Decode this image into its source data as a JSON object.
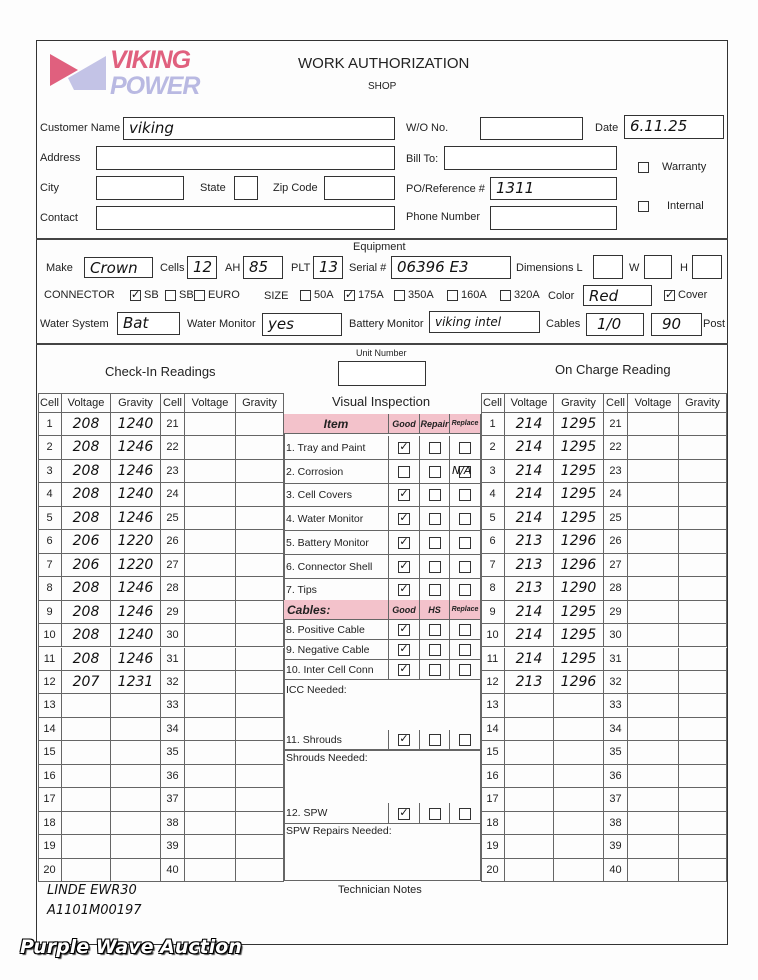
{
  "header": {
    "logo_line1": "VIKING",
    "logo_line2": "POWER",
    "title": "WORK AUTHORIZATION",
    "subtitle": "SHOP",
    "brand_pink": "#e0607e",
    "brand_lavender": "#b9b9e2"
  },
  "customer": {
    "customer_name_label": "Customer Name",
    "customer_name": "viking",
    "wo_label": "W/O No.",
    "wo": "",
    "date_label": "Date",
    "date": "6.11.25",
    "address_label": "Address",
    "bill_to_label": "Bill To:",
    "warranty_label": "Warranty",
    "internal_label": "Internal",
    "city_label": "City",
    "state_label": "State",
    "zip_label": "Zip Code",
    "po_label": "PO/Reference #",
    "po": "1311",
    "contact_label": "Contact",
    "phone_label": "Phone Number"
  },
  "equipment": {
    "title": "Equipment",
    "make_label": "Make",
    "make": "Crown",
    "cells_label": "Cells",
    "cells": "12",
    "ah_label": "AH",
    "ah": "85",
    "plt_label": "PLT",
    "plt": "13",
    "serial_label": "Serial #",
    "serial": "06396 E3",
    "dimensions_label": "Dimensions L",
    "w_label": "W",
    "h_label": "H",
    "connector_label": "CONNECTOR",
    "connector_options": [
      {
        "label": "SB",
        "checked": true
      },
      {
        "label": "SBX",
        "checked": false
      },
      {
        "label": "EURO",
        "checked": false
      }
    ],
    "size_label": "SIZE",
    "size_options": [
      {
        "label": "50A",
        "checked": false
      },
      {
        "label": "175A",
        "checked": true
      },
      {
        "label": "350A",
        "checked": false
      },
      {
        "label": "160A",
        "checked": false
      },
      {
        "label": "320A",
        "checked": false
      }
    ],
    "color_label": "Color",
    "color": "Red",
    "cover_label": "Cover",
    "cover_checked": true,
    "water_system_label": "Water System",
    "water_system": "Bat",
    "water_monitor_label": "Water Monitor",
    "water_monitor": "yes",
    "battery_monitor_label": "Battery Monitor",
    "battery_monitor": "viking intel",
    "cables_label": "Cables",
    "cables_size": "1/0",
    "cables_length": "90",
    "post_label": "Post"
  },
  "unit_number_label": "Unit Number",
  "check_in": {
    "title": "Check-In Readings",
    "headers": [
      "Cell",
      "Voltage",
      "Gravity",
      "Cell",
      "Voltage",
      "Gravity"
    ],
    "cells_left": [
      1,
      2,
      3,
      4,
      5,
      6,
      7,
      8,
      9,
      10,
      11,
      12,
      13,
      14,
      15,
      16,
      17,
      18,
      19,
      20
    ],
    "cells_right": [
      21,
      22,
      23,
      24,
      25,
      26,
      27,
      28,
      29,
      30,
      31,
      32,
      33,
      34,
      35,
      36,
      37,
      38,
      39,
      40
    ],
    "voltage": [
      "208",
      "208",
      "208",
      "208",
      "208",
      "206",
      "206",
      "208",
      "208",
      "208",
      "208",
      "207"
    ],
    "gravity": [
      "1240",
      "1246",
      "1246",
      "1240",
      "1246",
      "1220",
      "1220",
      "1246",
      "1246",
      "1240",
      "1246",
      "1231"
    ]
  },
  "on_charge": {
    "title": "On Charge Reading",
    "headers": [
      "Cell",
      "Voltage",
      "Gravity",
      "Cell",
      "Voltage",
      "Gravity"
    ],
    "cells_left": [
      1,
      2,
      3,
      4,
      5,
      6,
      7,
      8,
      9,
      10,
      11,
      12,
      13,
      14,
      15,
      16,
      17,
      18,
      19,
      20
    ],
    "cells_right": [
      21,
      22,
      23,
      24,
      25,
      26,
      27,
      28,
      29,
      30,
      31,
      32,
      33,
      34,
      35,
      36,
      37,
      38,
      39,
      40
    ],
    "voltage": [
      "214",
      "214",
      "214",
      "214",
      "214",
      "213",
      "213",
      "213",
      "214",
      "214",
      "214",
      "213"
    ],
    "gravity": [
      "1295",
      "1295",
      "1295",
      "1295",
      "1295",
      "1296",
      "1296",
      "1290",
      "1295",
      "1295",
      "1295",
      "1296"
    ]
  },
  "visual_inspection": {
    "title": "Visual Inspection",
    "headers": [
      "Item",
      "Good",
      "Repair",
      "Replace"
    ],
    "items": [
      {
        "label": "1. Tray and Paint",
        "status": "good"
      },
      {
        "label": "2. Corrosion",
        "status": "",
        "note": "N/A"
      },
      {
        "label": "3. Cell Covers",
        "status": "good"
      },
      {
        "label": "4. Water Monitor",
        "status": "good"
      },
      {
        "label": "5. Battery Monitor",
        "status": "good"
      },
      {
        "label": "6. Connector Shell",
        "status": "good"
      },
      {
        "label": "7. Tips",
        "status": "good"
      }
    ],
    "cables_headers": [
      "Cables:",
      "Good",
      "HS",
      "Replace"
    ],
    "cable_items": [
      {
        "label": "8. Positive Cable",
        "status": "good"
      },
      {
        "label": "9. Negative Cable",
        "status": "good"
      },
      {
        "label": "10. Inter Cell Conn",
        "status": "good"
      }
    ],
    "icc_needed_label": "ICC Needed:",
    "shrouds": {
      "label": "11. Shrouds",
      "status": "good"
    },
    "shrouds_needed_label": "Shrouds Needed:",
    "spw": {
      "label": "12. SPW",
      "status": "good"
    },
    "spw_repairs_label": "SPW Repairs Needed:"
  },
  "technician_notes_label": "Technician Notes",
  "notes": [
    "LINDE EWR30",
    "A1101M00197"
  ],
  "watermark": "Purple Wave Auction"
}
